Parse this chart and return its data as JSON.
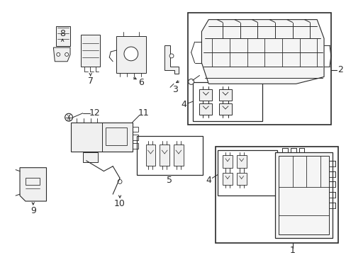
{
  "bg_color": "#ffffff",
  "line_color": "#2a2a2a",
  "figure_width": 4.89,
  "figure_height": 3.6,
  "dpi": 100
}
